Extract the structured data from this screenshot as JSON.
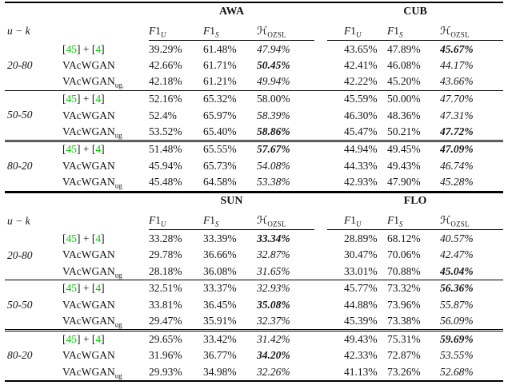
{
  "page": {
    "background": "#ffffff",
    "text_color": "#141414",
    "citation_color": "#00CB00"
  },
  "tables": [
    {
      "name": "results-table-awa-cub",
      "uk_header": "u − k",
      "datasets": [
        "AWA",
        "CUB"
      ],
      "metric_headers": [
        {
          "f": "F",
          "one": "1",
          "sub": "U"
        },
        {
          "f": "F",
          "one": "1",
          "sub": "S"
        },
        {
          "cal": "ℋ",
          "sub": "OZSL"
        }
      ],
      "blocks": [
        {
          "uk": "20-80",
          "sep": "none",
          "rows": [
            {
              "method": {
                "parts": [
                  {
                    "t": "[",
                    "link": false
                  },
                  {
                    "t": "45",
                    "link": true
                  },
                  {
                    "t": "] + [",
                    "link": false
                  },
                  {
                    "t": "4",
                    "link": true
                  },
                  {
                    "t": "]",
                    "link": false
                  }
                ]
              },
              "cells": [
                {
                  "v": "39.29%",
                  "s": "n"
                },
                {
                  "v": "61.48%",
                  "s": "n"
                },
                {
                  "v": "47.94%",
                  "s": "i"
                },
                {
                  "v": "43.65%",
                  "s": "n"
                },
                {
                  "v": "47.89%",
                  "s": "n"
                },
                {
                  "v": "45.67%",
                  "s": "bi"
                }
              ]
            },
            {
              "method": {
                "base": "VAcWGAN"
              },
              "cells": [
                {
                  "v": "42.66%",
                  "s": "n"
                },
                {
                  "v": "61.71%",
                  "s": "n"
                },
                {
                  "v": "50.45%",
                  "s": "bi"
                },
                {
                  "v": "42.41%",
                  "s": "n"
                },
                {
                  "v": "46.08%",
                  "s": "n"
                },
                {
                  "v": "44.17%",
                  "s": "i"
                }
              ]
            },
            {
              "method": {
                "base": "VAcWGAN",
                "sub": "ug."
              },
              "cells": [
                {
                  "v": "42.18%",
                  "s": "n"
                },
                {
                  "v": "61.21%",
                  "s": "n"
                },
                {
                  "v": "49.94%",
                  "s": "i"
                },
                {
                  "v": "42.22%",
                  "s": "n"
                },
                {
                  "v": "45.20%",
                  "s": "n"
                },
                {
                  "v": "43.66%",
                  "s": "i"
                }
              ]
            }
          ]
        },
        {
          "uk": "50-50",
          "sep": "single",
          "rows": [
            {
              "method": {
                "parts": [
                  {
                    "t": "[",
                    "link": false
                  },
                  {
                    "t": "45",
                    "link": true
                  },
                  {
                    "t": "] + [",
                    "link": false
                  },
                  {
                    "t": "4",
                    "link": true
                  },
                  {
                    "t": "]",
                    "link": false
                  }
                ]
              },
              "cells": [
                {
                  "v": "52.16%",
                  "s": "n"
                },
                {
                  "v": "65.32%",
                  "s": "n"
                },
                {
                  "v": "58.00%",
                  "s": "n"
                },
                {
                  "v": "45.59%",
                  "s": "n"
                },
                {
                  "v": "50.00%",
                  "s": "n"
                },
                {
                  "v": "47.70%",
                  "s": "i"
                }
              ]
            },
            {
              "method": {
                "base": "VAcWGAN"
              },
              "cells": [
                {
                  "v": "52.4%",
                  "s": "n"
                },
                {
                  "v": "65.97%",
                  "s": "n"
                },
                {
                  "v": "58.39%",
                  "s": "i"
                },
                {
                  "v": "46.30%",
                  "s": "n"
                },
                {
                  "v": "48.36%",
                  "s": "n"
                },
                {
                  "v": "47.31%",
                  "s": "i"
                }
              ]
            },
            {
              "method": {
                "base": "VAcWGAN",
                "sub": "ug"
              },
              "cells": [
                {
                  "v": "53.52%",
                  "s": "n"
                },
                {
                  "v": "65.40%",
                  "s": "n"
                },
                {
                  "v": "58.86%",
                  "s": "bi"
                },
                {
                  "v": "45.47%",
                  "s": "n"
                },
                {
                  "v": "50.21%",
                  "s": "n"
                },
                {
                  "v": "47.72%",
                  "s": "bi"
                }
              ]
            }
          ]
        },
        {
          "uk": "80-20",
          "sep": "double",
          "rows": [
            {
              "method": {
                "parts": [
                  {
                    "t": "[",
                    "link": false
                  },
                  {
                    "t": "45",
                    "link": true
                  },
                  {
                    "t": "] + [",
                    "link": false
                  },
                  {
                    "t": "4",
                    "link": true
                  },
                  {
                    "t": "]",
                    "link": false
                  }
                ]
              },
              "cells": [
                {
                  "v": "51.48%",
                  "s": "n"
                },
                {
                  "v": "65.55%",
                  "s": "n"
                },
                {
                  "v": "57.67%",
                  "s": "bi"
                },
                {
                  "v": "44.94%",
                  "s": "n"
                },
                {
                  "v": "49.45%",
                  "s": "n"
                },
                {
                  "v": "47.09%",
                  "s": "bi"
                }
              ]
            },
            {
              "method": {
                "base": "VAcWGAN"
              },
              "cells": [
                {
                  "v": "45.94%",
                  "s": "n"
                },
                {
                  "v": "65.73%",
                  "s": "n"
                },
                {
                  "v": "54.08%",
                  "s": "i"
                },
                {
                  "v": "44.33%",
                  "s": "n"
                },
                {
                  "v": "49.43%",
                  "s": "n"
                },
                {
                  "v": "46.74%",
                  "s": "i"
                }
              ]
            },
            {
              "method": {
                "base": "VAcWGAN",
                "sub": "ug"
              },
              "cells": [
                {
                  "v": "45.48%",
                  "s": "n"
                },
                {
                  "v": "64.58%",
                  "s": "n"
                },
                {
                  "v": "53.38%",
                  "s": "i"
                },
                {
                  "v": "42.93%",
                  "s": "n"
                },
                {
                  "v": "47.90%",
                  "s": "n"
                },
                {
                  "v": "45.28%",
                  "s": "i"
                }
              ]
            }
          ]
        }
      ]
    },
    {
      "name": "results-table-sun-flo",
      "uk_header": "u − k",
      "datasets": [
        "SUN",
        "FLO"
      ],
      "metric_headers": [
        {
          "f": "F",
          "one": "1",
          "sub": "U"
        },
        {
          "f": "F",
          "one": "1",
          "sub": "S"
        },
        {
          "cal": "ℋ",
          "sub": "OZSL"
        }
      ],
      "blocks": [
        {
          "uk": "20-80",
          "sep": "none",
          "rows": [
            {
              "method": {
                "parts": [
                  {
                    "t": "[",
                    "link": false
                  },
                  {
                    "t": "45",
                    "link": true
                  },
                  {
                    "t": "] + [",
                    "link": false
                  },
                  {
                    "t": "4",
                    "link": true
                  },
                  {
                    "t": "]",
                    "link": false
                  }
                ]
              },
              "cells": [
                {
                  "v": "33.28%",
                  "s": "n"
                },
                {
                  "v": "33.39%",
                  "s": "n"
                },
                {
                  "v": "33.34%",
                  "s": "bi"
                },
                {
                  "v": "28.89%",
                  "s": "n"
                },
                {
                  "v": "68.12%",
                  "s": "n"
                },
                {
                  "v": "40.57%",
                  "s": "i"
                }
              ]
            },
            {
              "method": {
                "base": "VAcWGAN"
              },
              "cells": [
                {
                  "v": "29.78%",
                  "s": "n"
                },
                {
                  "v": "36.66%",
                  "s": "n"
                },
                {
                  "v": "32.87%",
                  "s": "i"
                },
                {
                  "v": "30.47%",
                  "s": "n"
                },
                {
                  "v": "70.06%",
                  "s": "n"
                },
                {
                  "v": "42.47%",
                  "s": "i"
                }
              ]
            },
            {
              "method": {
                "base": "VAcWGAN",
                "sub": "ug"
              },
              "cells": [
                {
                  "v": "28.18%",
                  "s": "n"
                },
                {
                  "v": "36.08%",
                  "s": "n"
                },
                {
                  "v": "31.65%",
                  "s": "i"
                },
                {
                  "v": "33.01%",
                  "s": "n"
                },
                {
                  "v": "70.88%",
                  "s": "n"
                },
                {
                  "v": "45.04%",
                  "s": "bi"
                }
              ]
            }
          ]
        },
        {
          "uk": "50-50",
          "sep": "single",
          "rows": [
            {
              "method": {
                "parts": [
                  {
                    "t": "[",
                    "link": false
                  },
                  {
                    "t": "45",
                    "link": true
                  },
                  {
                    "t": "] + [",
                    "link": false
                  },
                  {
                    "t": "4",
                    "link": true
                  },
                  {
                    "t": "]",
                    "link": false
                  }
                ]
              },
              "cells": [
                {
                  "v": "32.51%",
                  "s": "n"
                },
                {
                  "v": "33.37%",
                  "s": "n"
                },
                {
                  "v": "32.93%",
                  "s": "i"
                },
                {
                  "v": "45.77%",
                  "s": "n"
                },
                {
                  "v": "73.32%",
                  "s": "n"
                },
                {
                  "v": "56.36%",
                  "s": "bi"
                }
              ]
            },
            {
              "method": {
                "base": "VAcWGAN"
              },
              "cells": [
                {
                  "v": "33.81%",
                  "s": "n"
                },
                {
                  "v": "36.45%",
                  "s": "n"
                },
                {
                  "v": "35.08%",
                  "s": "bi"
                },
                {
                  "v": "44.88%",
                  "s": "n"
                },
                {
                  "v": "73.96%",
                  "s": "n"
                },
                {
                  "v": "55.87%",
                  "s": "i"
                }
              ]
            },
            {
              "method": {
                "base": "VAcWGAN",
                "sub": "ug"
              },
              "cells": [
                {
                  "v": "29.47%",
                  "s": "n"
                },
                {
                  "v": "35.91%",
                  "s": "n"
                },
                {
                  "v": "32.37%",
                  "s": "i"
                },
                {
                  "v": "45.39%",
                  "s": "n"
                },
                {
                  "v": "73.38%",
                  "s": "n"
                },
                {
                  "v": "56.09%",
                  "s": "i"
                }
              ]
            }
          ]
        },
        {
          "uk": "80-20",
          "sep": "double",
          "rows": [
            {
              "method": {
                "parts": [
                  {
                    "t": "[",
                    "link": false
                  },
                  {
                    "t": "45",
                    "link": true
                  },
                  {
                    "t": "] + [",
                    "link": false
                  },
                  {
                    "t": "4",
                    "link": true
                  },
                  {
                    "t": "]",
                    "link": false
                  }
                ]
              },
              "cells": [
                {
                  "v": "29.65%",
                  "s": "n"
                },
                {
                  "v": "33.42%",
                  "s": "n"
                },
                {
                  "v": "31.42%",
                  "s": "i"
                },
                {
                  "v": "49.43%",
                  "s": "n"
                },
                {
                  "v": "75.31%",
                  "s": "n"
                },
                {
                  "v": "59.69%",
                  "s": "bi"
                }
              ]
            },
            {
              "method": {
                "base": "VAcWGAN"
              },
              "cells": [
                {
                  "v": "31.96%",
                  "s": "n"
                },
                {
                  "v": "36.77%",
                  "s": "n"
                },
                {
                  "v": "34.20%",
                  "s": "bi"
                },
                {
                  "v": "42.33%",
                  "s": "n"
                },
                {
                  "v": "72.87%",
                  "s": "n"
                },
                {
                  "v": "53.55%",
                  "s": "i"
                }
              ]
            },
            {
              "method": {
                "base": "VAcWGAN",
                "sub": "ug"
              },
              "cells": [
                {
                  "v": "29.93%",
                  "s": "n"
                },
                {
                  "v": "34.98%",
                  "s": "n"
                },
                {
                  "v": "32.26%",
                  "s": "i"
                },
                {
                  "v": "41.13%",
                  "s": "n"
                },
                {
                  "v": "73.26%",
                  "s": "n"
                },
                {
                  "v": "52.68%",
                  "s": "i"
                }
              ]
            }
          ]
        }
      ]
    }
  ]
}
